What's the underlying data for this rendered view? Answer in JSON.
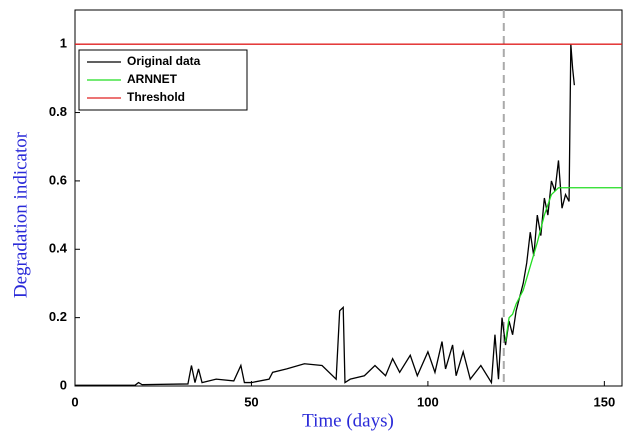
{
  "chart_data": {
    "type": "line",
    "xlabel": "Time (days)",
    "ylabel": "Degradation indicator",
    "xlim": [
      0,
      155
    ],
    "ylim": [
      0,
      1.1
    ],
    "xticks": [
      0,
      50,
      100,
      150
    ],
    "yticks": [
      0,
      0.2,
      0.4,
      0.6,
      0.8,
      1
    ],
    "grid": false,
    "legend": "upper left",
    "vertical_line": {
      "x": 121.5,
      "color": "#aaaaaa",
      "style": "dashed"
    },
    "series": [
      {
        "name": "Original data",
        "color": "#000000",
        "x": [
          0,
          17,
          18,
          19,
          32,
          33,
          34,
          35,
          36,
          40,
          45,
          47,
          48,
          50,
          55,
          56,
          60,
          65,
          70,
          74,
          75,
          76,
          76.5,
          78,
          82,
          85,
          88,
          90,
          92,
          95,
          97,
          100,
          102,
          104,
          105,
          107,
          108,
          110,
          112,
          115,
          118,
          119,
          120,
          121,
          122,
          123,
          124,
          125,
          126,
          127,
          128,
          129,
          130,
          131,
          132,
          133,
          134,
          135,
          136,
          137,
          138,
          139,
          140,
          140.5,
          141,
          141.5
        ],
        "values": [
          0.002,
          0.002,
          0.01,
          0.004,
          0.006,
          0.06,
          0.01,
          0.05,
          0.01,
          0.02,
          0.015,
          0.06,
          0.01,
          0.01,
          0.02,
          0.04,
          0.05,
          0.065,
          0.06,
          0.02,
          0.22,
          0.23,
          0.01,
          0.02,
          0.03,
          0.06,
          0.03,
          0.08,
          0.04,
          0.09,
          0.03,
          0.1,
          0.04,
          0.13,
          0.05,
          0.12,
          0.03,
          0.1,
          0.02,
          0.06,
          0.01,
          0.15,
          0.02,
          0.2,
          0.12,
          0.19,
          0.15,
          0.22,
          0.26,
          0.3,
          0.36,
          0.45,
          0.38,
          0.5,
          0.44,
          0.55,
          0.5,
          0.6,
          0.57,
          0.66,
          0.52,
          0.56,
          0.54,
          1.0,
          0.93,
          0.88
        ]
      },
      {
        "name": "ARNNET",
        "color": "#22dd22",
        "x": [
          122,
          123,
          124,
          125,
          127,
          129,
          131,
          133,
          135,
          137,
          155
        ],
        "values": [
          0.13,
          0.2,
          0.21,
          0.24,
          0.28,
          0.35,
          0.42,
          0.5,
          0.56,
          0.58,
          0.58
        ]
      },
      {
        "name": "Threshold",
        "color": "#e02020",
        "x": [
          0,
          155
        ],
        "values": [
          1,
          1
        ]
      }
    ]
  }
}
